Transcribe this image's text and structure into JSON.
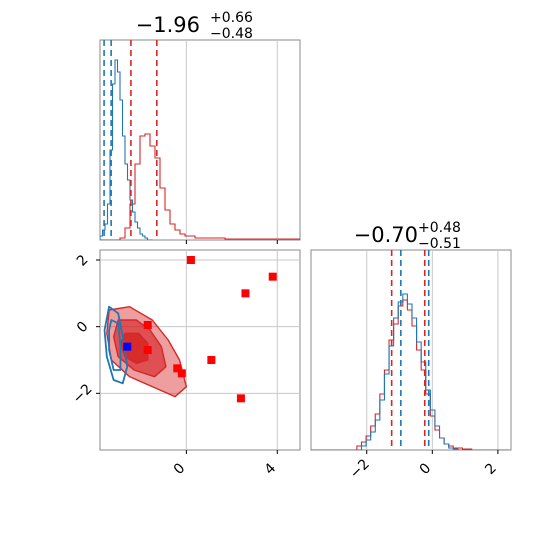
{
  "chart_data": {
    "type": "corner",
    "params": [
      {
        "median": "−1.96",
        "plus": "+0.66",
        "minus": "−0.48"
      },
      {
        "median": "−0.70",
        "plus": "+0.48",
        "minus": "−0.51"
      }
    ],
    "axes": {
      "x": {
        "range": [
          -3.8,
          5.0
        ],
        "ticks": [
          0,
          4
        ],
        "tick_labels": [
          "0",
          "4"
        ]
      },
      "y": {
        "range": [
          -3.7,
          2.3
        ],
        "ticks": [
          -2,
          0,
          2
        ],
        "tick_labels": [
          "−2",
          "0",
          "2"
        ]
      },
      "diag2_x": {
        "range": [
          -3.7,
          2.4
        ],
        "ticks": [
          -2,
          0,
          2
        ],
        "tick_labels": [
          "−2",
          "0",
          "2"
        ]
      }
    },
    "grid": true,
    "colors": {
      "red": "#d62728",
      "blue": "#1f77b4",
      "marker_red": "#ff0000",
      "marker_blue": "#0000ff",
      "grid": "#c8c8c8",
      "frame": "#888888"
    },
    "diag1": {
      "red_lines": [
        -2.44,
        -1.3
      ],
      "blue_lines": [
        -3.62,
        -3.31
      ],
      "red_hist": {
        "start": -3.8,
        "step": 0.22,
        "values": [
          0,
          0,
          0,
          0,
          0.01,
          0.06,
          0.18,
          0.38,
          0.52,
          0.53,
          0.47,
          0.41,
          0.26,
          0.15,
          0.08,
          0.05,
          0.03,
          0.02,
          0.02,
          0.01,
          0.01,
          0.01,
          0.01,
          0.01,
          0.01,
          0.005,
          0.005,
          0.005,
          0.005,
          0.005,
          0.005,
          0.005,
          0.005,
          0.005,
          0.005,
          0.005,
          0.005,
          0.005,
          0.005,
          0.005
        ]
      },
      "blue_hist": {
        "start": -3.8,
        "step": 0.11,
        "values": [
          0.02,
          0.05,
          0.08,
          0.18,
          0.45,
          0.78,
          0.9,
          0.84,
          0.7,
          0.52,
          0.38,
          0.3,
          0.2,
          0.14,
          0.09,
          0.06,
          0.03,
          0.02,
          0.01,
          0,
          0
        ]
      }
    },
    "diag2": {
      "red_lines": [
        -1.24,
        -0.23
      ],
      "blue_lines": [
        -0.96,
        -0.11
      ],
      "red_hist": {
        "start": -3.7,
        "step": 0.14,
        "values": [
          0,
          0,
          0,
          0,
          0,
          0,
          0,
          0,
          0,
          0,
          0.02,
          0.04,
          0.07,
          0.12,
          0.18,
          0.28,
          0.4,
          0.55,
          0.63,
          0.72,
          0.75,
          0.7,
          0.62,
          0.5,
          0.4,
          0.28,
          0.17,
          0.1,
          0.06,
          0.03,
          0.02,
          0.01,
          0.01,
          0.005,
          0.005,
          0,
          0,
          0,
          0,
          0,
          0,
          0,
          0
        ]
      },
      "blue_hist": {
        "start": -3.7,
        "step": 0.14,
        "values": [
          0,
          0,
          0,
          0,
          0,
          0,
          0,
          0,
          0,
          0,
          0,
          0.02,
          0.05,
          0.09,
          0.15,
          0.25,
          0.38,
          0.52,
          0.66,
          0.74,
          0.78,
          0.73,
          0.66,
          0.54,
          0.44,
          0.3,
          0.2,
          0.12,
          0.06,
          0.03,
          0.01,
          0.005,
          0,
          0,
          0,
          0,
          0,
          0,
          0,
          0,
          0,
          0,
          0
        ]
      }
    },
    "scatter": {
      "red_squares": [
        [
          0.2,
          2.0
        ],
        [
          2.6,
          1.0
        ],
        [
          3.8,
          1.5
        ],
        [
          -1.7,
          0.05
        ],
        [
          -1.7,
          -0.7
        ],
        [
          -0.4,
          -1.25
        ],
        [
          -0.2,
          -1.4
        ],
        [
          1.1,
          -1.0
        ],
        [
          2.4,
          -2.15
        ]
      ],
      "blue_squares": [
        [
          -2.6,
          -0.6
        ]
      ],
      "red_contours": [
        [
          [
            -3.4,
            0.5
          ],
          [
            -2.5,
            0.6
          ],
          [
            -1.5,
            0.2
          ],
          [
            -0.8,
            -0.4
          ],
          [
            -0.3,
            -1.0
          ],
          [
            0.0,
            -1.8
          ],
          [
            -0.5,
            -2.1
          ],
          [
            -1.5,
            -1.8
          ],
          [
            -2.5,
            -1.5
          ],
          [
            -3.3,
            -1.0
          ],
          [
            -3.5,
            -0.2
          ]
        ],
        [
          [
            -3.0,
            0.2
          ],
          [
            -2.2,
            0.2
          ],
          [
            -1.6,
            -0.1
          ],
          [
            -1.1,
            -0.6
          ],
          [
            -0.9,
            -1.2
          ],
          [
            -1.4,
            -1.5
          ],
          [
            -2.3,
            -1.3
          ],
          [
            -3.0,
            -0.9
          ],
          [
            -3.2,
            -0.3
          ]
        ],
        [
          [
            -2.7,
            -0.2
          ],
          [
            -2.1,
            -0.2
          ],
          [
            -1.7,
            -0.5
          ],
          [
            -1.7,
            -1.0
          ],
          [
            -2.2,
            -1.1
          ],
          [
            -2.7,
            -0.9
          ],
          [
            -2.9,
            -0.5
          ]
        ]
      ],
      "blue_contours": [
        [
          [
            -3.4,
            0.6
          ],
          [
            -3.0,
            0.4
          ],
          [
            -2.8,
            -0.3
          ],
          [
            -2.6,
            -1.2
          ],
          [
            -2.8,
            -1.7
          ],
          [
            -3.2,
            -1.6
          ],
          [
            -3.5,
            -0.9
          ],
          [
            -3.6,
            -0.1
          ]
        ],
        [
          [
            -3.3,
            0.2
          ],
          [
            -3.0,
            0.1
          ],
          [
            -2.9,
            -0.6
          ],
          [
            -2.9,
            -1.3
          ],
          [
            -3.2,
            -1.3
          ],
          [
            -3.4,
            -0.7
          ],
          [
            -3.4,
            -0.1
          ]
        ]
      ]
    }
  }
}
